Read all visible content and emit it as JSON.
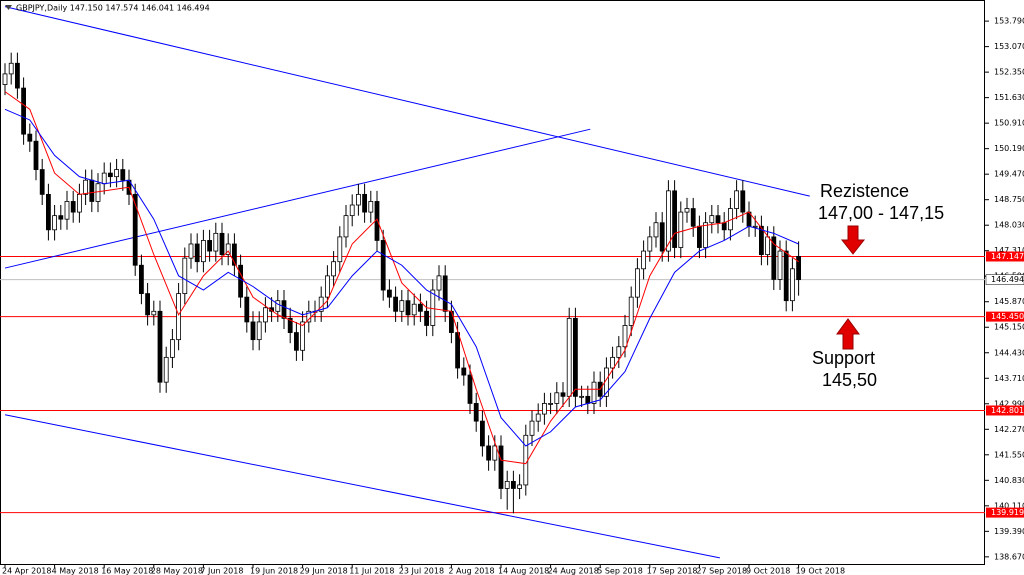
{
  "chart_data": {
    "type": "candlestick",
    "title": "GBPJPY,Daily  147.150 147.574 146.041 146.494",
    "ylim": [
      138.44,
      154.16
    ],
    "yticks": [
      {
        "value": 153.79,
        "label": "153.790"
      },
      {
        "value": 153.07,
        "label": "153.070"
      },
      {
        "value": 152.35,
        "label": "152.350"
      },
      {
        "value": 151.63,
        "label": "151.630"
      },
      {
        "value": 150.91,
        "label": "150.910"
      },
      {
        "value": 150.19,
        "label": "150.190"
      },
      {
        "value": 149.47,
        "label": "149.470"
      },
      {
        "value": 148.75,
        "label": "148.750"
      },
      {
        "value": 148.03,
        "label": "148.030"
      },
      {
        "value": 147.31,
        "label": "147.310"
      },
      {
        "value": 146.59,
        "label": "146.590"
      },
      {
        "value": 145.87,
        "label": "145.870"
      },
      {
        "value": 145.15,
        "label": "145.150"
      },
      {
        "value": 144.43,
        "label": "144.430"
      },
      {
        "value": 143.71,
        "label": "143.710"
      },
      {
        "value": 142.99,
        "label": "142.990"
      },
      {
        "value": 142.27,
        "label": "142.270"
      },
      {
        "value": 141.55,
        "label": "141.550"
      },
      {
        "value": 140.83,
        "label": "140.830"
      },
      {
        "value": 140.11,
        "label": "140.110"
      },
      {
        "value": 139.39,
        "label": "139.390"
      },
      {
        "value": 138.67,
        "label": "138.670"
      }
    ],
    "xticks": [
      {
        "value": 0,
        "label": "24 Apr 2018"
      },
      {
        "value": 8,
        "label": "4 May 2018"
      },
      {
        "value": 16,
        "label": "16 May 2018"
      },
      {
        "value": 24,
        "label": "28 May 2018"
      },
      {
        "value": 32,
        "label": "7 Jun 2018"
      },
      {
        "value": 40,
        "label": "19 Jun 2018"
      },
      {
        "value": 48,
        "label": "29 Jun 2018"
      },
      {
        "value": 56,
        "label": "11 Jul 2018"
      },
      {
        "value": 64,
        "label": "23 Jul 2018"
      },
      {
        "value": 72,
        "label": "2 Aug 2018"
      },
      {
        "value": 80,
        "label": "14 Aug 2018"
      },
      {
        "value": 88,
        "label": "24 Aug 2018"
      },
      {
        "value": 96,
        "label": "5 Sep 2018"
      },
      {
        "value": 104,
        "label": "17 Sep 2018"
      },
      {
        "value": 112,
        "label": "27 Sep 2018"
      },
      {
        "value": 120,
        "label": "9 Oct 2018"
      },
      {
        "value": 128,
        "label": "19 Oct 2018"
      }
    ],
    "ohlc": [
      [
        152.0,
        152.6,
        151.7,
        152.3
      ],
      [
        152.3,
        152.9,
        152.0,
        152.6
      ],
      [
        152.6,
        152.9,
        151.6,
        151.9
      ],
      [
        151.9,
        152.2,
        150.3,
        150.6
      ],
      [
        150.6,
        150.9,
        150.1,
        150.4
      ],
      [
        150.4,
        150.7,
        149.3,
        149.6
      ],
      [
        149.6,
        149.9,
        148.6,
        148.9
      ],
      [
        148.9,
        149.2,
        147.6,
        147.9
      ],
      [
        147.9,
        148.6,
        147.6,
        148.3
      ],
      [
        148.3,
        148.6,
        147.9,
        148.2
      ],
      [
        148.2,
        149.0,
        147.9,
        148.7
      ],
      [
        148.7,
        149.0,
        148.1,
        148.4
      ],
      [
        148.4,
        149.2,
        148.1,
        148.9
      ],
      [
        148.9,
        149.6,
        148.6,
        149.3
      ],
      [
        149.3,
        149.6,
        148.4,
        148.7
      ],
      [
        148.7,
        149.5,
        148.4,
        149.2
      ],
      [
        149.2,
        149.8,
        148.9,
        149.5
      ],
      [
        149.5,
        149.8,
        149.1,
        149.4
      ],
      [
        149.4,
        149.9,
        149.1,
        149.6
      ],
      [
        149.6,
        149.9,
        149.0,
        149.3
      ],
      [
        149.3,
        149.6,
        148.6,
        148.9
      ],
      [
        148.9,
        149.2,
        146.6,
        146.9
      ],
      [
        146.9,
        147.2,
        145.8,
        146.1
      ],
      [
        146.1,
        146.4,
        145.2,
        145.5
      ],
      [
        145.5,
        145.9,
        145.2,
        145.6
      ],
      [
        145.6,
        145.9,
        143.3,
        143.6
      ],
      [
        143.6,
        144.6,
        143.3,
        144.3
      ],
      [
        144.3,
        145.1,
        144.0,
        144.8
      ],
      [
        144.8,
        146.4,
        144.5,
        146.1
      ],
      [
        146.1,
        147.4,
        145.8,
        147.1
      ],
      [
        147.1,
        147.8,
        146.8,
        147.5
      ],
      [
        147.5,
        147.8,
        146.7,
        147.0
      ],
      [
        147.0,
        147.9,
        146.7,
        147.6
      ],
      [
        147.6,
        147.9,
        147.0,
        147.3
      ],
      [
        147.3,
        148.1,
        147.0,
        147.8
      ],
      [
        147.8,
        148.1,
        146.9,
        147.2
      ],
      [
        147.2,
        147.8,
        146.9,
        147.5
      ],
      [
        147.5,
        147.8,
        146.6,
        146.9
      ],
      [
        146.9,
        147.2,
        145.7,
        146.0
      ],
      [
        146.0,
        146.3,
        145.0,
        145.3
      ],
      [
        145.3,
        145.6,
        144.5,
        144.8
      ],
      [
        144.8,
        145.6,
        144.5,
        145.3
      ],
      [
        145.3,
        146.0,
        145.0,
        145.7
      ],
      [
        145.7,
        146.0,
        145.3,
        145.6
      ],
      [
        145.6,
        146.2,
        145.3,
        145.9
      ],
      [
        145.9,
        146.2,
        145.1,
        145.4
      ],
      [
        145.4,
        145.7,
        144.7,
        145.0
      ],
      [
        145.0,
        145.3,
        144.2,
        144.5
      ],
      [
        144.5,
        145.6,
        144.2,
        145.3
      ],
      [
        145.3,
        145.9,
        145.0,
        145.6
      ],
      [
        145.6,
        145.9,
        145.3,
        145.6
      ],
      [
        145.6,
        146.3,
        145.3,
        146.0
      ],
      [
        146.0,
        146.9,
        145.7,
        146.6
      ],
      [
        146.6,
        147.3,
        146.3,
        147.0
      ],
      [
        147.0,
        148.0,
        146.7,
        147.7
      ],
      [
        147.7,
        148.6,
        147.4,
        148.3
      ],
      [
        148.3,
        148.9,
        148.0,
        148.6
      ],
      [
        148.6,
        149.2,
        148.3,
        148.9
      ],
      [
        148.9,
        149.2,
        148.1,
        148.4
      ],
      [
        148.4,
        149.0,
        148.1,
        148.7
      ],
      [
        148.7,
        149.0,
        147.3,
        147.6
      ],
      [
        147.6,
        147.9,
        145.9,
        146.2
      ],
      [
        146.2,
        146.5,
        145.7,
        146.0
      ],
      [
        146.0,
        146.3,
        145.3,
        145.6
      ],
      [
        145.6,
        146.2,
        145.3,
        145.9
      ],
      [
        145.9,
        146.2,
        145.2,
        145.5
      ],
      [
        145.5,
        146.1,
        145.2,
        145.8
      ],
      [
        145.8,
        146.1,
        145.3,
        145.6
      ],
      [
        145.6,
        145.9,
        144.9,
        145.2
      ],
      [
        145.2,
        146.5,
        144.9,
        146.2
      ],
      [
        146.2,
        146.9,
        145.9,
        146.6
      ],
      [
        146.6,
        146.9,
        145.3,
        145.6
      ],
      [
        145.6,
        145.9,
        144.7,
        145.0
      ],
      [
        145.0,
        145.3,
        143.7,
        144.0
      ],
      [
        144.0,
        144.3,
        143.5,
        143.8
      ],
      [
        143.8,
        144.1,
        142.7,
        143.0
      ],
      [
        143.0,
        143.3,
        142.2,
        142.5
      ],
      [
        142.5,
        142.8,
        141.5,
        141.8
      ],
      [
        141.8,
        142.1,
        141.1,
        141.4
      ],
      [
        141.4,
        142.1,
        141.1,
        141.8
      ],
      [
        141.8,
        142.1,
        140.3,
        140.6
      ],
      [
        140.6,
        141.1,
        140.0,
        140.8
      ],
      [
        140.8,
        141.1,
        139.9,
        140.6
      ],
      [
        140.6,
        141.0,
        140.3,
        140.7
      ],
      [
        140.7,
        142.4,
        140.4,
        142.1
      ],
      [
        142.1,
        142.8,
        141.8,
        142.5
      ],
      [
        142.5,
        143.0,
        142.2,
        142.7
      ],
      [
        142.7,
        143.3,
        142.4,
        143.0
      ],
      [
        143.0,
        143.3,
        142.7,
        143.0
      ],
      [
        143.0,
        143.6,
        142.7,
        143.3
      ],
      [
        143.3,
        143.6,
        142.9,
        143.2
      ],
      [
        143.2,
        145.7,
        142.9,
        145.4
      ],
      [
        145.4,
        145.7,
        142.9,
        143.2
      ],
      [
        143.2,
        143.5,
        142.9,
        143.2
      ],
      [
        143.2,
        143.5,
        142.7,
        143.0
      ],
      [
        143.0,
        143.9,
        142.7,
        143.6
      ],
      [
        143.6,
        143.9,
        142.9,
        143.2
      ],
      [
        143.2,
        144.3,
        142.9,
        144.0
      ],
      [
        144.0,
        144.6,
        143.7,
        144.3
      ],
      [
        144.3,
        144.9,
        144.0,
        144.6
      ],
      [
        144.6,
        145.5,
        144.3,
        145.2
      ],
      [
        145.2,
        146.3,
        144.9,
        146.0
      ],
      [
        146.0,
        147.1,
        145.7,
        146.8
      ],
      [
        146.8,
        147.6,
        146.5,
        147.3
      ],
      [
        147.3,
        148.0,
        147.0,
        147.7
      ],
      [
        147.7,
        148.4,
        147.4,
        148.1
      ],
      [
        148.1,
        148.4,
        147.0,
        147.3
      ],
      [
        147.3,
        149.3,
        147.0,
        149.0
      ],
      [
        149.0,
        149.3,
        147.1,
        147.4
      ],
      [
        147.4,
        148.7,
        147.1,
        148.4
      ],
      [
        148.4,
        148.8,
        148.1,
        148.5
      ],
      [
        148.5,
        148.8,
        147.7,
        148.0
      ],
      [
        148.0,
        148.3,
        147.1,
        147.4
      ],
      [
        147.4,
        148.4,
        147.1,
        148.1
      ],
      [
        148.1,
        148.6,
        147.8,
        148.3
      ],
      [
        148.3,
        148.6,
        147.8,
        148.1
      ],
      [
        148.1,
        148.4,
        147.6,
        147.9
      ],
      [
        147.9,
        148.8,
        147.6,
        148.5
      ],
      [
        148.5,
        149.3,
        148.2,
        149.0
      ],
      [
        149.0,
        149.3,
        148.1,
        148.4
      ],
      [
        148.4,
        148.7,
        147.7,
        148.0
      ],
      [
        148.0,
        148.3,
        147.7,
        148.0
      ],
      [
        148.0,
        148.3,
        146.9,
        147.2
      ],
      [
        147.2,
        148.0,
        146.9,
        147.7
      ],
      [
        147.7,
        148.0,
        146.2,
        146.5
      ],
      [
        146.5,
        147.6,
        146.2,
        147.3
      ],
      [
        147.3,
        147.6,
        145.6,
        145.9
      ],
      [
        145.9,
        147.1,
        145.6,
        146.8
      ],
      [
        147.15,
        147.574,
        146.041,
        146.494
      ]
    ],
    "series": [
      {
        "color": "#ff0000",
        "x": [
          0,
          4,
          8,
          12,
          16,
          20,
          24,
          28,
          32,
          36,
          40,
          44,
          48,
          52,
          56,
          60,
          64,
          68,
          72,
          76,
          80,
          84,
          88,
          92,
          96,
          100,
          104,
          108,
          112,
          116,
          120,
          124,
          128
        ],
        "values": [
          151.8,
          151.3,
          149.5,
          148.9,
          149.0,
          149.1,
          147.2,
          145.5,
          146.6,
          147.3,
          146.0,
          145.5,
          145.2,
          145.9,
          147.5,
          148.2,
          146.4,
          145.7,
          145.6,
          143.4,
          141.4,
          141.3,
          142.5,
          143.4,
          143.4,
          144.5,
          146.6,
          147.8,
          148.0,
          148.1,
          148.4,
          147.5,
          147.0
        ]
      },
      {
        "color": "#0000ff",
        "x": [
          0,
          4,
          8,
          12,
          16,
          20,
          24,
          28,
          32,
          36,
          40,
          44,
          48,
          52,
          56,
          60,
          64,
          68,
          72,
          76,
          80,
          84,
          88,
          92,
          96,
          100,
          104,
          108,
          112,
          116,
          120,
          124,
          128
        ],
        "values": [
          151.3,
          151.0,
          150.0,
          149.4,
          149.2,
          149.3,
          148.2,
          146.6,
          146.2,
          146.7,
          146.3,
          145.8,
          145.5,
          145.7,
          146.6,
          147.3,
          146.9,
          146.2,
          145.8,
          144.6,
          142.6,
          141.8,
          142.2,
          142.9,
          143.1,
          143.9,
          145.4,
          146.7,
          147.3,
          147.6,
          148.0,
          147.8,
          147.5
        ]
      }
    ],
    "trendlines": [
      {
        "color": "#0000ff",
        "x": [
          0,
          129.8
        ],
        "values": [
          154.2,
          148.85
        ]
      },
      {
        "color": "#0000ff",
        "x": [
          0,
          94.4
        ],
        "values": [
          146.82,
          150.74
        ]
      },
      {
        "color": "#0000ff",
        "x": [
          0,
          115.3
        ],
        "values": [
          142.68,
          138.64
        ]
      }
    ],
    "levels": [
      147.147,
      {
        "value": 145.45,
        "label": "145.450"
      },
      142.801,
      139.919
    ],
    "level_color": "#ff0000",
    "current_price": 146.494,
    "annotations": {
      "resistance_title": "Rezistence",
      "resistance_range": "147,00 - 147,15",
      "support_title": "Support",
      "support_value": "145,50"
    }
  }
}
